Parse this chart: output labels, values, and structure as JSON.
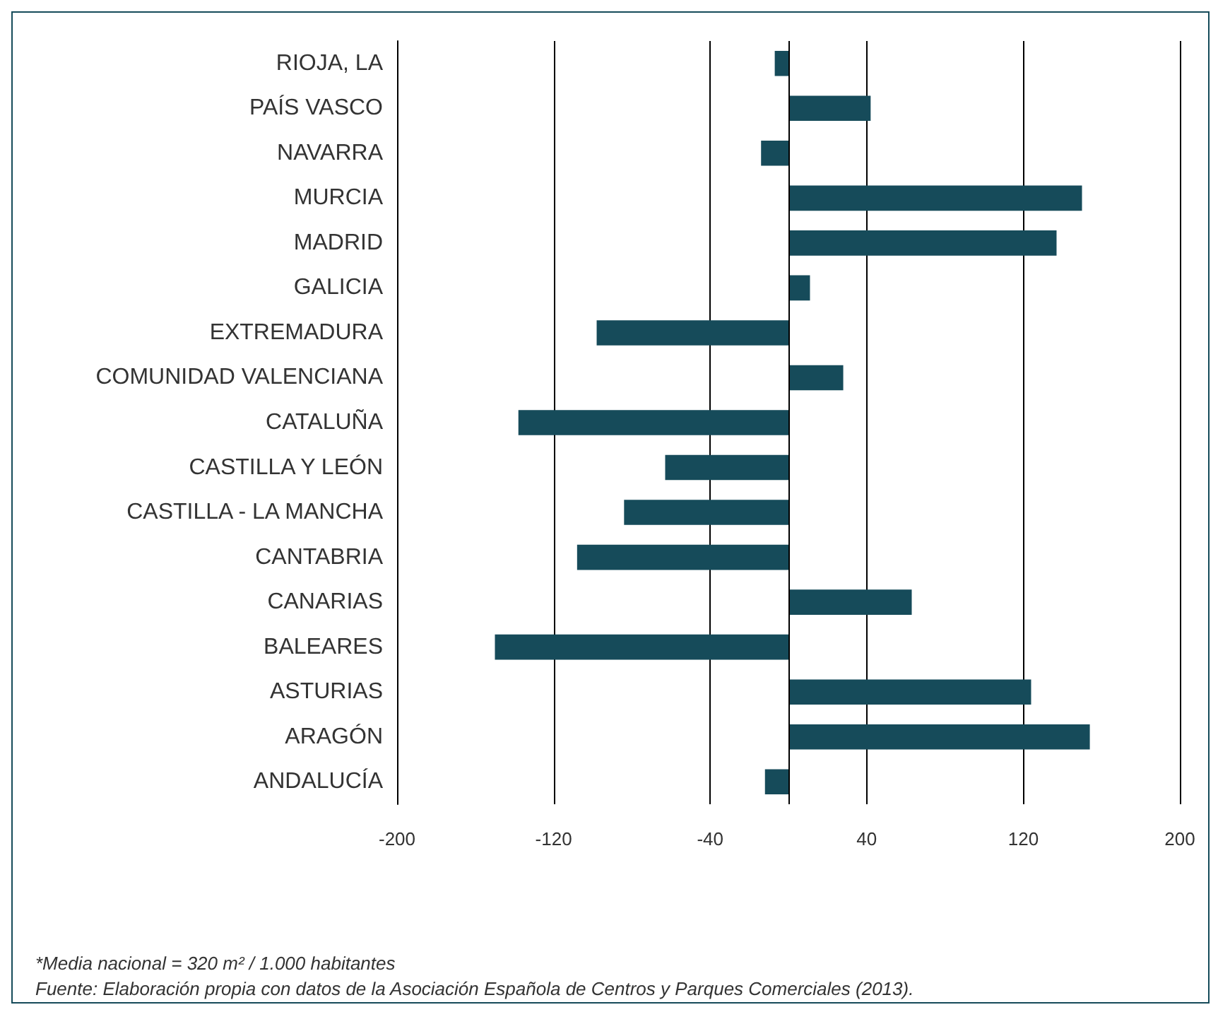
{
  "chart_data": {
    "type": "bar",
    "orientation": "horizontal",
    "categories": [
      "RIOJA, LA",
      "PAÍS VASCO",
      "NAVARRA",
      "MURCIA",
      "MADRID",
      "GALICIA",
      "EXTREMADURA",
      "COMUNIDAD VALENCIANA",
      "CATALUÑA",
      "CASTILLA Y LEÓN",
      "CASTILLA - LA MANCHA",
      "CANTABRIA",
      "CANARIAS",
      "BALEARES",
      "ASTURIAS",
      "ARAGÓN",
      "ANDALUCÍA"
    ],
    "values": [
      -7,
      42,
      -14,
      150,
      137,
      11,
      -98,
      28,
      -138,
      -63,
      -84,
      -108,
      63,
      -150,
      124,
      154,
      -12
    ],
    "color": "#164b5a",
    "xlim": [
      -200,
      200
    ],
    "xticks": [
      -200,
      -120,
      -40,
      40,
      120,
      200
    ],
    "grid": "x",
    "annotations": [
      "*Media nacional = 320 m² / 1.000 habitantes",
      "Fuente: Elaboración propia con datos de la Asociación Española de Centros y Parques Comerciales (2013)."
    ]
  }
}
